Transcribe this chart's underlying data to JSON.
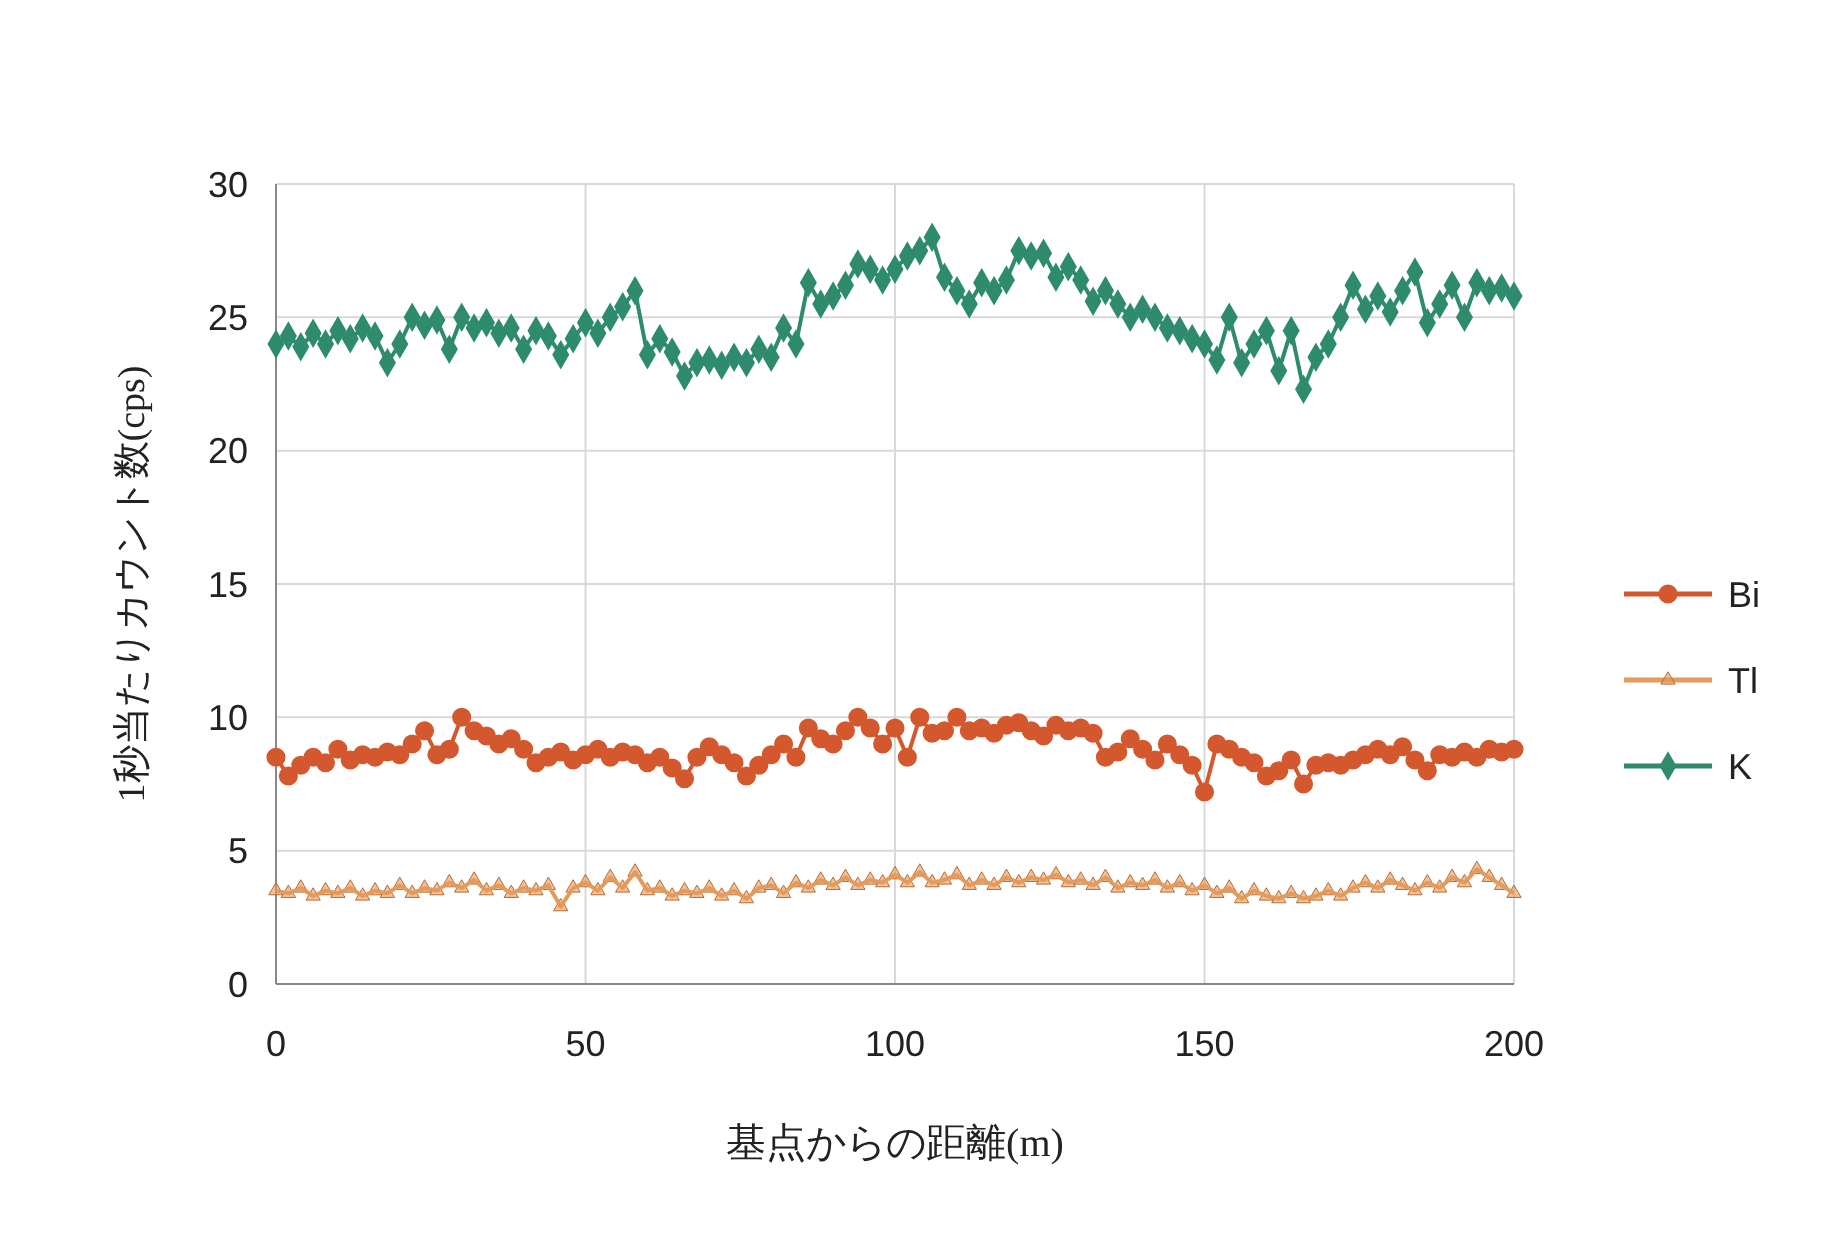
{
  "chart_data": {
    "type": "line",
    "xlabel": "基点からの距離(m)",
    "ylabel": "1秒当たりカウント数(cps)",
    "x": [
      0,
      2,
      4,
      6,
      8,
      10,
      12,
      14,
      16,
      18,
      20,
      22,
      24,
      26,
      28,
      30,
      32,
      34,
      36,
      38,
      40,
      42,
      44,
      46,
      48,
      50,
      52,
      54,
      56,
      58,
      60,
      62,
      64,
      66,
      68,
      70,
      72,
      74,
      76,
      78,
      80,
      82,
      84,
      86,
      88,
      90,
      92,
      94,
      96,
      98,
      100,
      102,
      104,
      106,
      108,
      110,
      112,
      114,
      116,
      118,
      120,
      122,
      124,
      126,
      128,
      130,
      132,
      134,
      136,
      138,
      140,
      142,
      144,
      146,
      148,
      150,
      152,
      154,
      156,
      158,
      160,
      162,
      164,
      166,
      168,
      170,
      172,
      174,
      176,
      178,
      180,
      182,
      184,
      186,
      188,
      190,
      192,
      194,
      196,
      198,
      200
    ],
    "series": [
      {
        "name": "Bi",
        "color": "#d4582e",
        "marker": "circle",
        "values": [
          8.5,
          7.8,
          8.2,
          8.5,
          8.3,
          8.8,
          8.4,
          8.6,
          8.5,
          8.7,
          8.6,
          9.0,
          9.5,
          8.6,
          8.8,
          10.0,
          9.5,
          9.3,
          9.0,
          9.2,
          8.8,
          8.3,
          8.5,
          8.7,
          8.4,
          8.6,
          8.8,
          8.5,
          8.7,
          8.6,
          8.3,
          8.5,
          8.1,
          7.7,
          8.5,
          8.9,
          8.6,
          8.3,
          7.8,
          8.2,
          8.6,
          9.0,
          8.5,
          9.6,
          9.2,
          9.0,
          9.5,
          10.0,
          9.6,
          9.0,
          9.6,
          8.5,
          10.0,
          9.4,
          9.5,
          10.0,
          9.5,
          9.6,
          9.4,
          9.7,
          9.8,
          9.5,
          9.3,
          9.7,
          9.5,
          9.6,
          9.4,
          8.5,
          8.7,
          9.2,
          8.8,
          8.4,
          9.0,
          8.6,
          8.2,
          7.2,
          9.0,
          8.8,
          8.5,
          8.3,
          7.8,
          8.0,
          8.4,
          7.5,
          8.2,
          8.3,
          8.2,
          8.4,
          8.6,
          8.8,
          8.6,
          8.9,
          8.4,
          8.0,
          8.6,
          8.5,
          8.7,
          8.5,
          8.8,
          8.7,
          8.8
        ]
      },
      {
        "name": "Tl",
        "color": "#e39a5a",
        "marker": "triangle",
        "values": [
          3.5,
          3.4,
          3.6,
          3.3,
          3.5,
          3.4,
          3.6,
          3.3,
          3.5,
          3.4,
          3.7,
          3.4,
          3.6,
          3.5,
          3.8,
          3.6,
          3.9,
          3.5,
          3.7,
          3.4,
          3.6,
          3.5,
          3.7,
          2.9,
          3.6,
          3.8,
          3.5,
          4.0,
          3.6,
          4.2,
          3.5,
          3.6,
          3.3,
          3.5,
          3.4,
          3.6,
          3.3,
          3.5,
          3.2,
          3.6,
          3.7,
          3.4,
          3.8,
          3.6,
          3.9,
          3.7,
          4.0,
          3.7,
          3.9,
          3.8,
          4.1,
          3.8,
          4.2,
          3.8,
          3.9,
          4.1,
          3.7,
          3.9,
          3.7,
          4.0,
          3.8,
          4.0,
          3.9,
          4.1,
          3.8,
          3.9,
          3.7,
          4.0,
          3.6,
          3.8,
          3.7,
          3.9,
          3.6,
          3.8,
          3.5,
          3.7,
          3.4,
          3.6,
          3.2,
          3.5,
          3.3,
          3.2,
          3.4,
          3.2,
          3.3,
          3.5,
          3.3,
          3.6,
          3.8,
          3.6,
          3.9,
          3.7,
          3.5,
          3.8,
          3.6,
          4.0,
          3.8,
          4.3,
          4.0,
          3.7,
          3.4
        ]
      },
      {
        "name": "K",
        "color": "#2e8b6e",
        "marker": "diamond",
        "values": [
          24.0,
          24.3,
          23.9,
          24.4,
          24.0,
          24.5,
          24.2,
          24.6,
          24.3,
          23.3,
          24.0,
          25.0,
          24.7,
          24.9,
          23.8,
          25.0,
          24.6,
          24.8,
          24.4,
          24.6,
          23.8,
          24.5,
          24.3,
          23.6,
          24.2,
          24.8,
          24.4,
          25.0,
          25.4,
          26.0,
          23.6,
          24.2,
          23.7,
          22.8,
          23.3,
          23.4,
          23.2,
          23.5,
          23.3,
          23.8,
          23.5,
          24.6,
          24.0,
          26.3,
          25.5,
          25.8,
          26.2,
          27.0,
          26.8,
          26.4,
          26.8,
          27.3,
          27.5,
          28.0,
          26.5,
          26.0,
          25.5,
          26.3,
          26.0,
          26.4,
          27.5,
          27.3,
          27.4,
          26.5,
          26.9,
          26.4,
          25.6,
          26.0,
          25.5,
          25.0,
          25.3,
          25.0,
          24.6,
          24.5,
          24.2,
          24.0,
          23.4,
          25.0,
          23.3,
          24.0,
          24.5,
          23.0,
          24.5,
          22.3,
          23.5,
          24.0,
          25.0,
          26.2,
          25.3,
          25.8,
          25.2,
          26.0,
          26.7,
          24.8,
          25.5,
          26.2,
          25.0,
          26.3,
          26.0,
          26.1,
          25.8
        ]
      }
    ],
    "xlim": [
      0,
      200
    ],
    "xticks": [
      0,
      50,
      100,
      150,
      200
    ],
    "ylim": [
      0,
      30
    ],
    "yticks": [
      0,
      5,
      10,
      15,
      20,
      25,
      30
    ],
    "grid": true,
    "legend": "right",
    "line_style": "solid"
  }
}
